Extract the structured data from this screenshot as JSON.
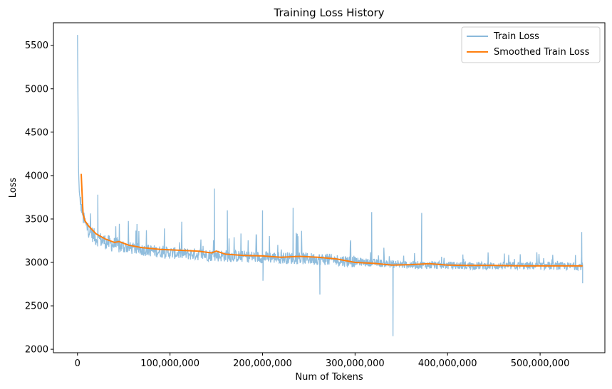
{
  "chart_data": {
    "type": "line",
    "title": "Training Loss History",
    "xlabel": "Num of Tokens",
    "ylabel": "Loss",
    "xlim": [
      -26000000,
      570000000
    ],
    "ylim": [
      1960,
      5760
    ],
    "xticks": [
      0,
      100000000,
      200000000,
      300000000,
      400000000,
      500000000
    ],
    "xtick_labels": [
      "0",
      "100,000,000",
      "200,000,000",
      "300,000,000",
      "400,000,000",
      "500,000,000"
    ],
    "yticks": [
      2000,
      2500,
      3000,
      3500,
      4000,
      4500,
      5000,
      5500
    ],
    "ytick_labels": [
      "2000",
      "2500",
      "3000",
      "3500",
      "4000",
      "4500",
      "5000",
      "5500"
    ],
    "grid": false,
    "legend_position": "top-right",
    "series": [
      {
        "name": "Train Loss",
        "color": "#8ab9db",
        "style": "noisy",
        "x": [
          0,
          1000000,
          2000000,
          4000000,
          6000000,
          10000000,
          20000000,
          40000000,
          60000000,
          100000000,
          150000000,
          200000000,
          260000000,
          300000000,
          350000000,
          400000000,
          450000000,
          500000000,
          546000000
        ],
        "y": [
          5620,
          4100,
          3800,
          3650,
          3520,
          3400,
          3280,
          3200,
          3160,
          3110,
          3080,
          3060,
          3040,
          3010,
          2975,
          2965,
          2960,
          2960,
          2955
        ],
        "spikes": [
          {
            "x": 22000000,
            "y": 3780
          },
          {
            "x": 148000000,
            "y": 3850
          },
          {
            "x": 162000000,
            "y": 3600
          },
          {
            "x": 200000000,
            "y": 3600
          },
          {
            "x": 200500000,
            "y": 2790
          },
          {
            "x": 233000000,
            "y": 3630
          },
          {
            "x": 262000000,
            "y": 2630
          },
          {
            "x": 318000000,
            "y": 3580
          },
          {
            "x": 341000000,
            "y": 2150
          },
          {
            "x": 372000000,
            "y": 3570
          },
          {
            "x": 545000000,
            "y": 3350
          },
          {
            "x": 546000000,
            "y": 2760
          }
        ]
      },
      {
        "name": "Smoothed Train Loss",
        "color": "#ff7f0e",
        "style": "line",
        "x": [
          4000000,
          5000000,
          6000000,
          8000000,
          12000000,
          20000000,
          30000000,
          40000000,
          45000000,
          55000000,
          70000000,
          90000000,
          110000000,
          130000000,
          145000000,
          150000000,
          160000000,
          180000000,
          200000000,
          220000000,
          240000000,
          260000000,
          280000000,
          300000000,
          320000000,
          340000000,
          360000000,
          380000000,
          400000000,
          420000000,
          450000000,
          480000000,
          500000000,
          546000000
        ],
        "y": [
          4020,
          3780,
          3560,
          3480,
          3420,
          3330,
          3270,
          3230,
          3240,
          3200,
          3170,
          3150,
          3140,
          3130,
          3110,
          3130,
          3095,
          3080,
          3075,
          3060,
          3070,
          3060,
          3040,
          3000,
          2990,
          2970,
          2975,
          2985,
          2970,
          2965,
          2965,
          2960,
          2960,
          2960
        ]
      }
    ]
  }
}
